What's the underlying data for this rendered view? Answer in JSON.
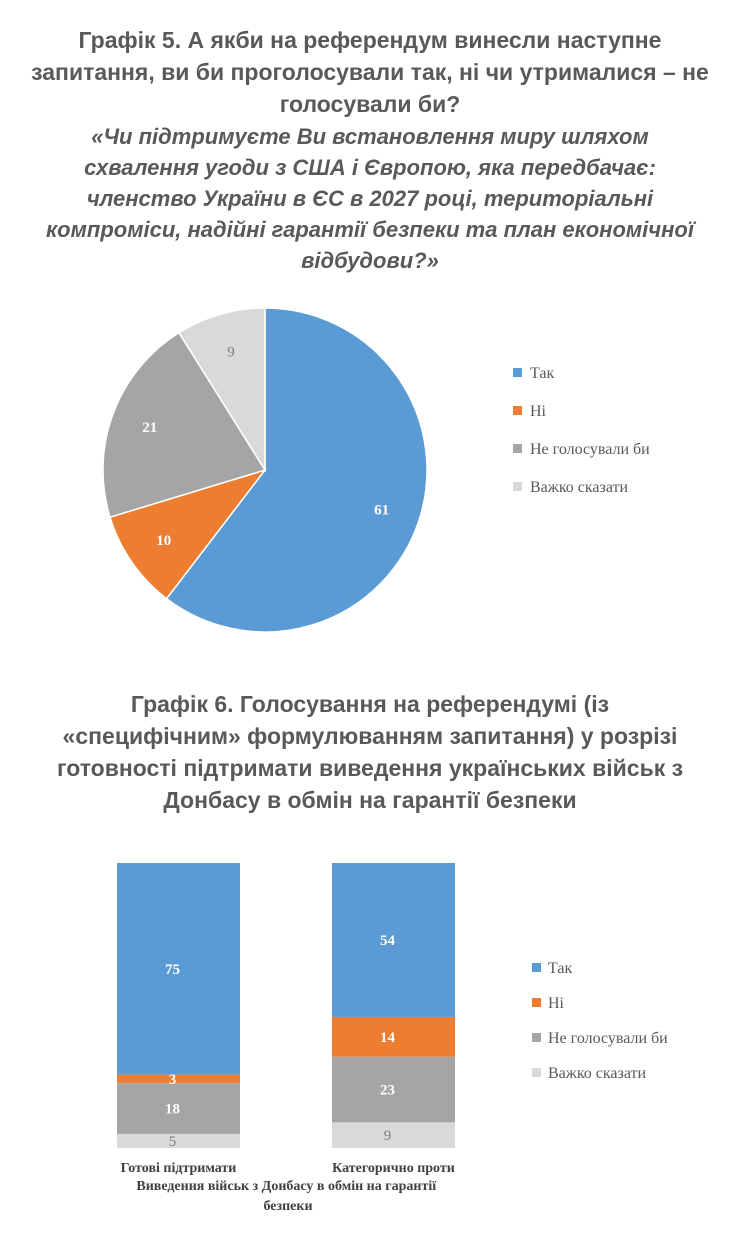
{
  "chart5": {
    "title_lines": [
      "Графік 5. А якби на референдум винесли наступне",
      "запитання, ви би проголосували так, ні чи утрималися – не",
      "голосували би?"
    ],
    "subtitle_lines": [
      "«Чи підтримуєте Ви встановлення миру шляхом",
      "схвалення угоди з США і Європою, яка передбачає:",
      "членство України в ЄС в 2027 році, територіальні",
      "компроміси, надійні гарантії безпеки та план економічної",
      "відбудови?»"
    ]
  },
  "chart6": {
    "title_lines": [
      "Графік 6. Голосування на референдумі (із",
      "«специфічним» формулюванням запитання) у розрізі",
      "готовності підтримати виведення українських військ з",
      "Донбасу в обмін на гарантії безпеки"
    ],
    "xlabel_lines": [
      "Виведення військ з Донбасу в обмін на гарантії",
      "безпеки"
    ]
  },
  "colors": {
    "yes": "#5b9bd5",
    "no": "#ed7d31",
    "not_vote": "#a5a5a5",
    "hard_to_say": "#d9d9d9"
  },
  "chart_data": [
    {
      "type": "pie",
      "title": "Графік 5. А якби на референдум винесли наступне запитання, ви би проголосували так, ні чи утрималися – не голосували би?",
      "labels": [
        "Так",
        "Ні",
        "Не голосували би",
        "Важко сказати"
      ],
      "values": [
        61,
        10,
        21,
        9
      ],
      "legend": "right"
    },
    {
      "type": "bar",
      "stacked": true,
      "title": "Графік 6. Голосування на референдумі (із «специфічним» формулюванням запитання) у розрізі готовності підтримати виведення українських військ з Донбасу в обмін на гарантії безпеки",
      "xlabel": "Виведення військ з Донбасу в обмін на гарантії безпеки",
      "categories": [
        "Готові підтримати",
        "Категорично проти"
      ],
      "series": [
        {
          "name": "Так",
          "values": [
            75,
            54
          ]
        },
        {
          "name": "Ні",
          "values": [
            3,
            14
          ]
        },
        {
          "name": "Не голосували би",
          "values": [
            18,
            23
          ]
        },
        {
          "name": "Важко сказати",
          "values": [
            5,
            9
          ]
        }
      ],
      "legend": "right",
      "grid": false
    }
  ]
}
